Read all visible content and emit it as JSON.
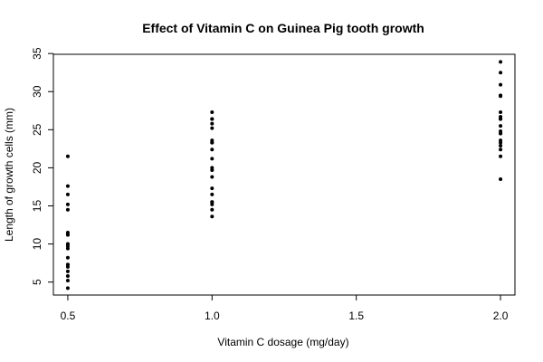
{
  "chart_data": {
    "type": "scatter",
    "title": "Effect of Vitamin C on Guinea Pig tooth growth",
    "xlabel": "Vitamin C dosage (mg/day)",
    "ylabel": "Length of growth cells (mm)",
    "xlim": [
      0.45,
      2.05
    ],
    "ylim": [
      3.3,
      34.9
    ],
    "x_ticks": [
      0.5,
      1.0,
      1.5,
      2.0
    ],
    "x_tick_labels": [
      "0.5",
      "1.0",
      "1.5",
      "2.0"
    ],
    "y_ticks": [
      5,
      10,
      15,
      20,
      25,
      30,
      35
    ],
    "y_tick_labels": [
      "5",
      "10",
      "15",
      "20",
      "25",
      "30",
      "35"
    ],
    "grid": false,
    "legend": "none",
    "point_color": "#000000",
    "series": [
      {
        "x": [
          0.5,
          0.5,
          0.5,
          0.5,
          0.5,
          0.5,
          0.5,
          0.5,
          0.5,
          0.5,
          0.5,
          0.5,
          0.5,
          0.5,
          0.5,
          0.5,
          0.5,
          0.5,
          0.5,
          0.5
        ],
        "y": [
          21.5,
          17.6,
          16.5,
          15.2,
          14.5,
          11.5,
          11.2,
          10.0,
          9.7,
          9.4,
          8.2,
          7.3,
          7.0,
          6.4,
          5.8,
          5.2,
          4.2,
          10.0,
          7.3,
          11.2
        ]
      },
      {
        "x": [
          1.0,
          1.0,
          1.0,
          1.0,
          1.0,
          1.0,
          1.0,
          1.0,
          1.0,
          1.0,
          1.0,
          1.0,
          1.0,
          1.0,
          1.0,
          1.0,
          1.0,
          1.0,
          1.0,
          1.0
        ],
        "y": [
          27.3,
          26.4,
          25.8,
          25.2,
          23.6,
          23.3,
          22.4,
          21.2,
          20.0,
          19.7,
          18.8,
          17.3,
          16.5,
          15.5,
          15.2,
          14.5,
          13.6,
          26.4,
          23.3,
          15.5
        ]
      },
      {
        "x": [
          2.0,
          2.0,
          2.0,
          2.0,
          2.0,
          2.0,
          2.0,
          2.0,
          2.0,
          2.0,
          2.0,
          2.0,
          2.0,
          2.0,
          2.0,
          2.0,
          2.0,
          2.0,
          2.0,
          2.0
        ],
        "y": [
          33.9,
          32.5,
          30.9,
          29.5,
          29.4,
          27.3,
          26.7,
          26.4,
          25.5,
          24.8,
          24.5,
          23.6,
          23.3,
          22.9,
          22.4,
          21.5,
          18.5,
          26.4,
          24.5,
          29.5
        ]
      }
    ]
  }
}
